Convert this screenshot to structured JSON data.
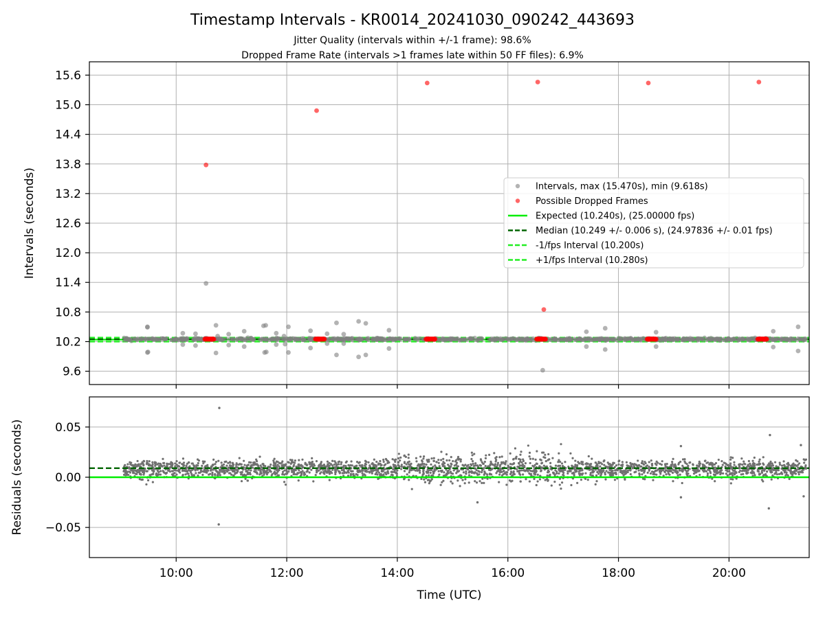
{
  "chart_data": [
    {
      "type": "scatter",
      "title": "Timestamp Intervals - KR0014_20241030_090242_443693",
      "subtitle_lines": [
        "Jitter Quality (intervals within +/-1 frame): 98.6%",
        "Dropped Frame Rate (intervals >1 frames late within 50 FF files): 6.9%"
      ],
      "xlabel": "",
      "ylabel": "Intervals (seconds)",
      "xlim": [
        8.43,
        21.45
      ],
      "ylim": [
        9.33,
        15.87
      ],
      "x_ticks": [
        10,
        12,
        14,
        16,
        18,
        20
      ],
      "x_tick_labels": [
        "10:00",
        "12:00",
        "14:00",
        "16:00",
        "18:00",
        "20:00"
      ],
      "y_ticks": [
        9.6,
        10.2,
        10.8,
        11.4,
        12.0,
        12.6,
        13.2,
        13.8,
        14.4,
        15.0,
        15.6
      ],
      "y_tick_labels": [
        "9.6",
        "10.2",
        "10.8",
        "11.4",
        "12.0",
        "12.6",
        "13.2",
        "13.8",
        "14.4",
        "15.0",
        "15.6"
      ],
      "grid": true,
      "legend_position": "center-right",
      "series": [
        {
          "name": "Intervals, max (15.470s), min (9.618s)",
          "kind": "scatter",
          "color": "#808080",
          "points": [
            [
              9.48,
              10.5
            ],
            [
              9.48,
              10.49
            ],
            [
              9.48,
              9.98
            ],
            [
              9.49,
              9.99
            ],
            [
              10.12,
              10.37
            ],
            [
              10.12,
              10.14
            ],
            [
              10.35,
              10.36
            ],
            [
              10.35,
              10.12
            ],
            [
              10.54,
              11.38
            ],
            [
              10.72,
              10.53
            ],
            [
              10.72,
              9.97
            ],
            [
              10.75,
              10.31
            ],
            [
              10.95,
              10.35
            ],
            [
              10.95,
              10.13
            ],
            [
              11.23,
              10.41
            ],
            [
              11.23,
              10.1
            ],
            [
              11.58,
              10.52
            ],
            [
              11.62,
              10.53
            ],
            [
              11.6,
              9.98
            ],
            [
              11.63,
              9.99
            ],
            [
              11.81,
              10.37
            ],
            [
              11.81,
              10.14
            ],
            [
              11.95,
              10.31
            ],
            [
              11.97,
              10.15
            ],
            [
              12.03,
              10.5
            ],
            [
              12.03,
              9.98
            ],
            [
              12.43,
              10.42
            ],
            [
              12.43,
              10.07
            ],
            [
              12.73,
              10.36
            ],
            [
              12.73,
              10.16
            ],
            [
              12.9,
              10.58
            ],
            [
              12.9,
              9.93
            ],
            [
              13.03,
              10.35
            ],
            [
              13.03,
              10.16
            ],
            [
              13.3,
              10.61
            ],
            [
              13.3,
              9.89
            ],
            [
              13.43,
              10.57
            ],
            [
              13.43,
              9.93
            ],
            [
              13.85,
              10.43
            ],
            [
              13.85,
              10.06
            ],
            [
              16.63,
              9.62
            ],
            [
              17.42,
              10.4
            ],
            [
              17.42,
              10.1
            ],
            [
              17.76,
              10.47
            ],
            [
              17.76,
              10.04
            ],
            [
              18.68,
              10.39
            ],
            [
              18.68,
              10.1
            ],
            [
              20.8,
              10.41
            ],
            [
              20.8,
              10.09
            ],
            [
              21.25,
              10.5
            ],
            [
              21.25,
              10.01
            ]
          ]
        },
        {
          "name": "Possible Dropped Frames",
          "kind": "scatter",
          "color": "#ff0000",
          "points": [
            [
              10.54,
              13.78
            ],
            [
              12.54,
              14.88
            ],
            [
              14.54,
              15.44
            ],
            [
              16.54,
              15.46
            ],
            [
              16.65,
              10.85
            ],
            [
              18.54,
              15.44
            ],
            [
              20.54,
              15.46
            ]
          ],
          "clusters": [
            {
              "x_start": 10.52,
              "x_end": 10.68,
              "y": 10.25
            },
            {
              "x_start": 12.52,
              "x_end": 12.68,
              "y": 10.25
            },
            {
              "x_start": 14.52,
              "x_end": 14.68,
              "y": 10.25
            },
            {
              "x_start": 16.52,
              "x_end": 16.68,
              "y": 10.25
            },
            {
              "x_start": 18.52,
              "x_end": 18.68,
              "y": 10.25
            },
            {
              "x_start": 20.52,
              "x_end": 20.68,
              "y": 10.25
            }
          ]
        },
        {
          "name": "Expected (10.240s), (25.00000 fps)",
          "kind": "hline",
          "y": 10.24,
          "color": "#00ee00",
          "style": "solid"
        },
        {
          "name": "Median (10.249 +/- 0.006 s), (24.97836 +/- 0.01 fps)",
          "kind": "hline",
          "y": 10.249,
          "color": "#006400",
          "style": "dashed"
        },
        {
          "name": "-1/fps Interval (10.200s)",
          "kind": "hline",
          "y": 10.2,
          "color": "#22ee22",
          "style": "dashed"
        },
        {
          "name": "+1/fps Interval (10.280s)",
          "kind": "hline",
          "y": 10.28,
          "color": "#22ee22",
          "style": "dashed"
        }
      ],
      "dense_band": {
        "x_start": 9.05,
        "x_end": 21.4,
        "y_center": 10.249,
        "y_spread": 0.03,
        "color": "#808080"
      }
    },
    {
      "type": "scatter",
      "title": "",
      "xlabel": "Time (UTC)",
      "ylabel": "Residuals (seconds)",
      "xlim": [
        8.43,
        21.45
      ],
      "ylim": [
        -0.08,
        0.08
      ],
      "x_ticks": [
        10,
        12,
        14,
        16,
        18,
        20
      ],
      "x_tick_labels": [
        "10:00",
        "12:00",
        "14:00",
        "16:00",
        "18:00",
        "20:00"
      ],
      "y_ticks": [
        -0.05,
        0.0,
        0.05
      ],
      "y_tick_labels": [
        "−0.05",
        "0.00",
        "0.05"
      ],
      "grid": true,
      "series": [
        {
          "name": "Residuals",
          "kind": "scatter",
          "color": "#707070",
          "x_start": 9.05,
          "x_end": 21.4,
          "center": 0.008,
          "spread": 0.007,
          "outliers": [
            [
              10.78,
              0.069
            ],
            [
              10.77,
              -0.047
            ],
            [
              15.45,
              -0.025
            ],
            [
              19.13,
              0.031
            ],
            [
              19.13,
              -0.02
            ],
            [
              20.74,
              0.042
            ],
            [
              20.72,
              -0.031
            ],
            [
              21.35,
              -0.019
            ],
            [
              21.3,
              0.032
            ]
          ]
        },
        {
          "name": "Expected",
          "kind": "hline",
          "y": 0.0,
          "color": "#00ee00",
          "style": "solid"
        },
        {
          "name": "Median",
          "kind": "hline",
          "y": 0.009,
          "color": "#006400",
          "style": "dashed"
        }
      ]
    }
  ]
}
